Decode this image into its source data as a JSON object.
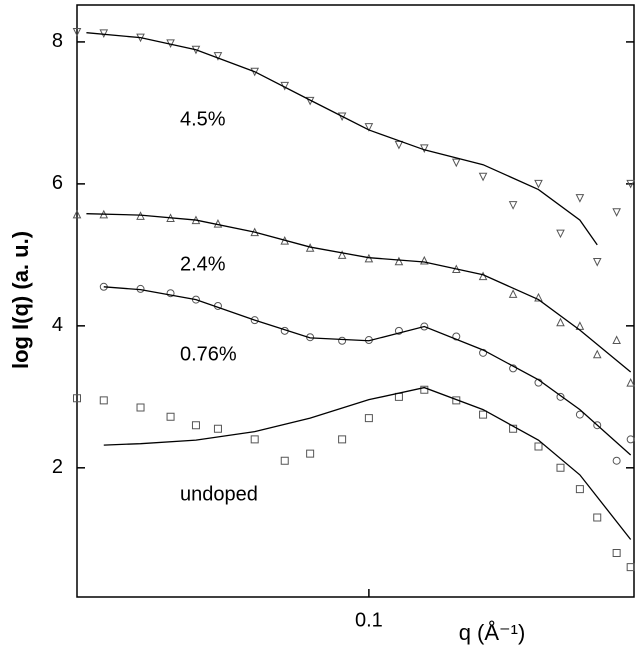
{
  "chart_data": {
    "type": "scatter",
    "x_label": "q (Å⁻¹)",
    "y_label": "log I(q) (a. u.)",
    "x_scale": "log",
    "xlim": [
      0.017,
      0.5
    ],
    "ylim": [
      0.18,
      8.52
    ],
    "xticks": [
      0.1
    ],
    "yticks": [
      2,
      4,
      6,
      8
    ],
    "series": [
      {
        "name": "4.5%",
        "marker": "triangle-down",
        "color": "#555555",
        "fit_color": "#000000",
        "x": [
          0.017,
          0.02,
          0.025,
          0.03,
          0.035,
          0.04,
          0.05,
          0.06,
          0.07,
          0.085,
          0.1,
          0.12,
          0.14,
          0.17,
          0.2,
          0.24,
          0.28,
          0.32,
          0.36,
          0.4,
          0.45,
          0.49
        ],
        "values": [
          8.14,
          8.12,
          8.06,
          7.98,
          7.89,
          7.8,
          7.58,
          7.38,
          7.17,
          6.95,
          6.8,
          6.55,
          6.5,
          6.3,
          6.1,
          5.7,
          6.0,
          5.3,
          5.8,
          4.9,
          5.6,
          6.0
        ],
        "fit_x": [
          0.018,
          0.025,
          0.035,
          0.05,
          0.07,
          0.1,
          0.14,
          0.2,
          0.28,
          0.36,
          0.4
        ],
        "fit_values": [
          8.13,
          8.06,
          7.89,
          7.58,
          7.18,
          6.76,
          6.48,
          6.27,
          5.92,
          5.49,
          5.14
        ]
      },
      {
        "name": "2.4%",
        "marker": "triangle-up",
        "color": "#555555",
        "fit_color": "#000000",
        "x": [
          0.017,
          0.02,
          0.025,
          0.03,
          0.035,
          0.04,
          0.05,
          0.06,
          0.07,
          0.085,
          0.1,
          0.12,
          0.14,
          0.17,
          0.2,
          0.24,
          0.28,
          0.32,
          0.36,
          0.4,
          0.45,
          0.49
        ],
        "values": [
          5.57,
          5.57,
          5.55,
          5.52,
          5.49,
          5.44,
          5.32,
          5.2,
          5.1,
          5.0,
          4.95,
          4.91,
          4.92,
          4.8,
          4.7,
          4.45,
          4.4,
          4.05,
          4.0,
          3.6,
          3.8,
          3.2
        ],
        "fit_x": [
          0.018,
          0.025,
          0.035,
          0.05,
          0.07,
          0.1,
          0.14,
          0.2,
          0.28,
          0.36,
          0.49
        ],
        "fit_values": [
          5.58,
          5.56,
          5.49,
          5.32,
          5.11,
          4.96,
          4.9,
          4.72,
          4.37,
          3.94,
          3.35
        ]
      },
      {
        "name": "0.76%",
        "marker": "circle",
        "color": "#555555",
        "fit_color": "#000000",
        "x": [
          0.02,
          0.025,
          0.03,
          0.035,
          0.04,
          0.05,
          0.06,
          0.07,
          0.085,
          0.1,
          0.12,
          0.14,
          0.17,
          0.2,
          0.24,
          0.28,
          0.32,
          0.36,
          0.4,
          0.45,
          0.49
        ],
        "values": [
          4.55,
          4.52,
          4.46,
          4.37,
          4.28,
          4.08,
          3.93,
          3.84,
          3.79,
          3.8,
          3.93,
          3.99,
          3.85,
          3.62,
          3.4,
          3.2,
          3.0,
          2.75,
          2.6,
          2.1,
          2.4
        ],
        "fit_x": [
          0.02,
          0.025,
          0.035,
          0.05,
          0.07,
          0.1,
          0.14,
          0.2,
          0.28,
          0.36,
          0.49
        ],
        "fit_values": [
          4.55,
          4.51,
          4.37,
          4.08,
          3.83,
          3.79,
          3.99,
          3.66,
          3.24,
          2.82,
          2.18
        ]
      },
      {
        "name": "undoped",
        "marker": "square",
        "color": "#555555",
        "fit_color": "#000000",
        "x": [
          0.017,
          0.02,
          0.025,
          0.03,
          0.035,
          0.04,
          0.05,
          0.06,
          0.07,
          0.085,
          0.1,
          0.12,
          0.14,
          0.17,
          0.2,
          0.24,
          0.28,
          0.32,
          0.36,
          0.4,
          0.45,
          0.49
        ],
        "values": [
          2.98,
          2.95,
          2.85,
          2.72,
          2.6,
          2.55,
          2.4,
          2.1,
          2.2,
          2.4,
          2.7,
          3.0,
          3.1,
          2.95,
          2.75,
          2.55,
          2.3,
          2.0,
          1.7,
          1.3,
          0.8,
          0.6
        ],
        "fit_x": [
          0.02,
          0.025,
          0.035,
          0.05,
          0.07,
          0.1,
          0.14,
          0.2,
          0.28,
          0.36,
          0.49
        ],
        "fit_values": [
          2.32,
          2.34,
          2.39,
          2.51,
          2.7,
          2.96,
          3.13,
          2.82,
          2.39,
          1.9,
          0.99
        ]
      }
    ]
  }
}
